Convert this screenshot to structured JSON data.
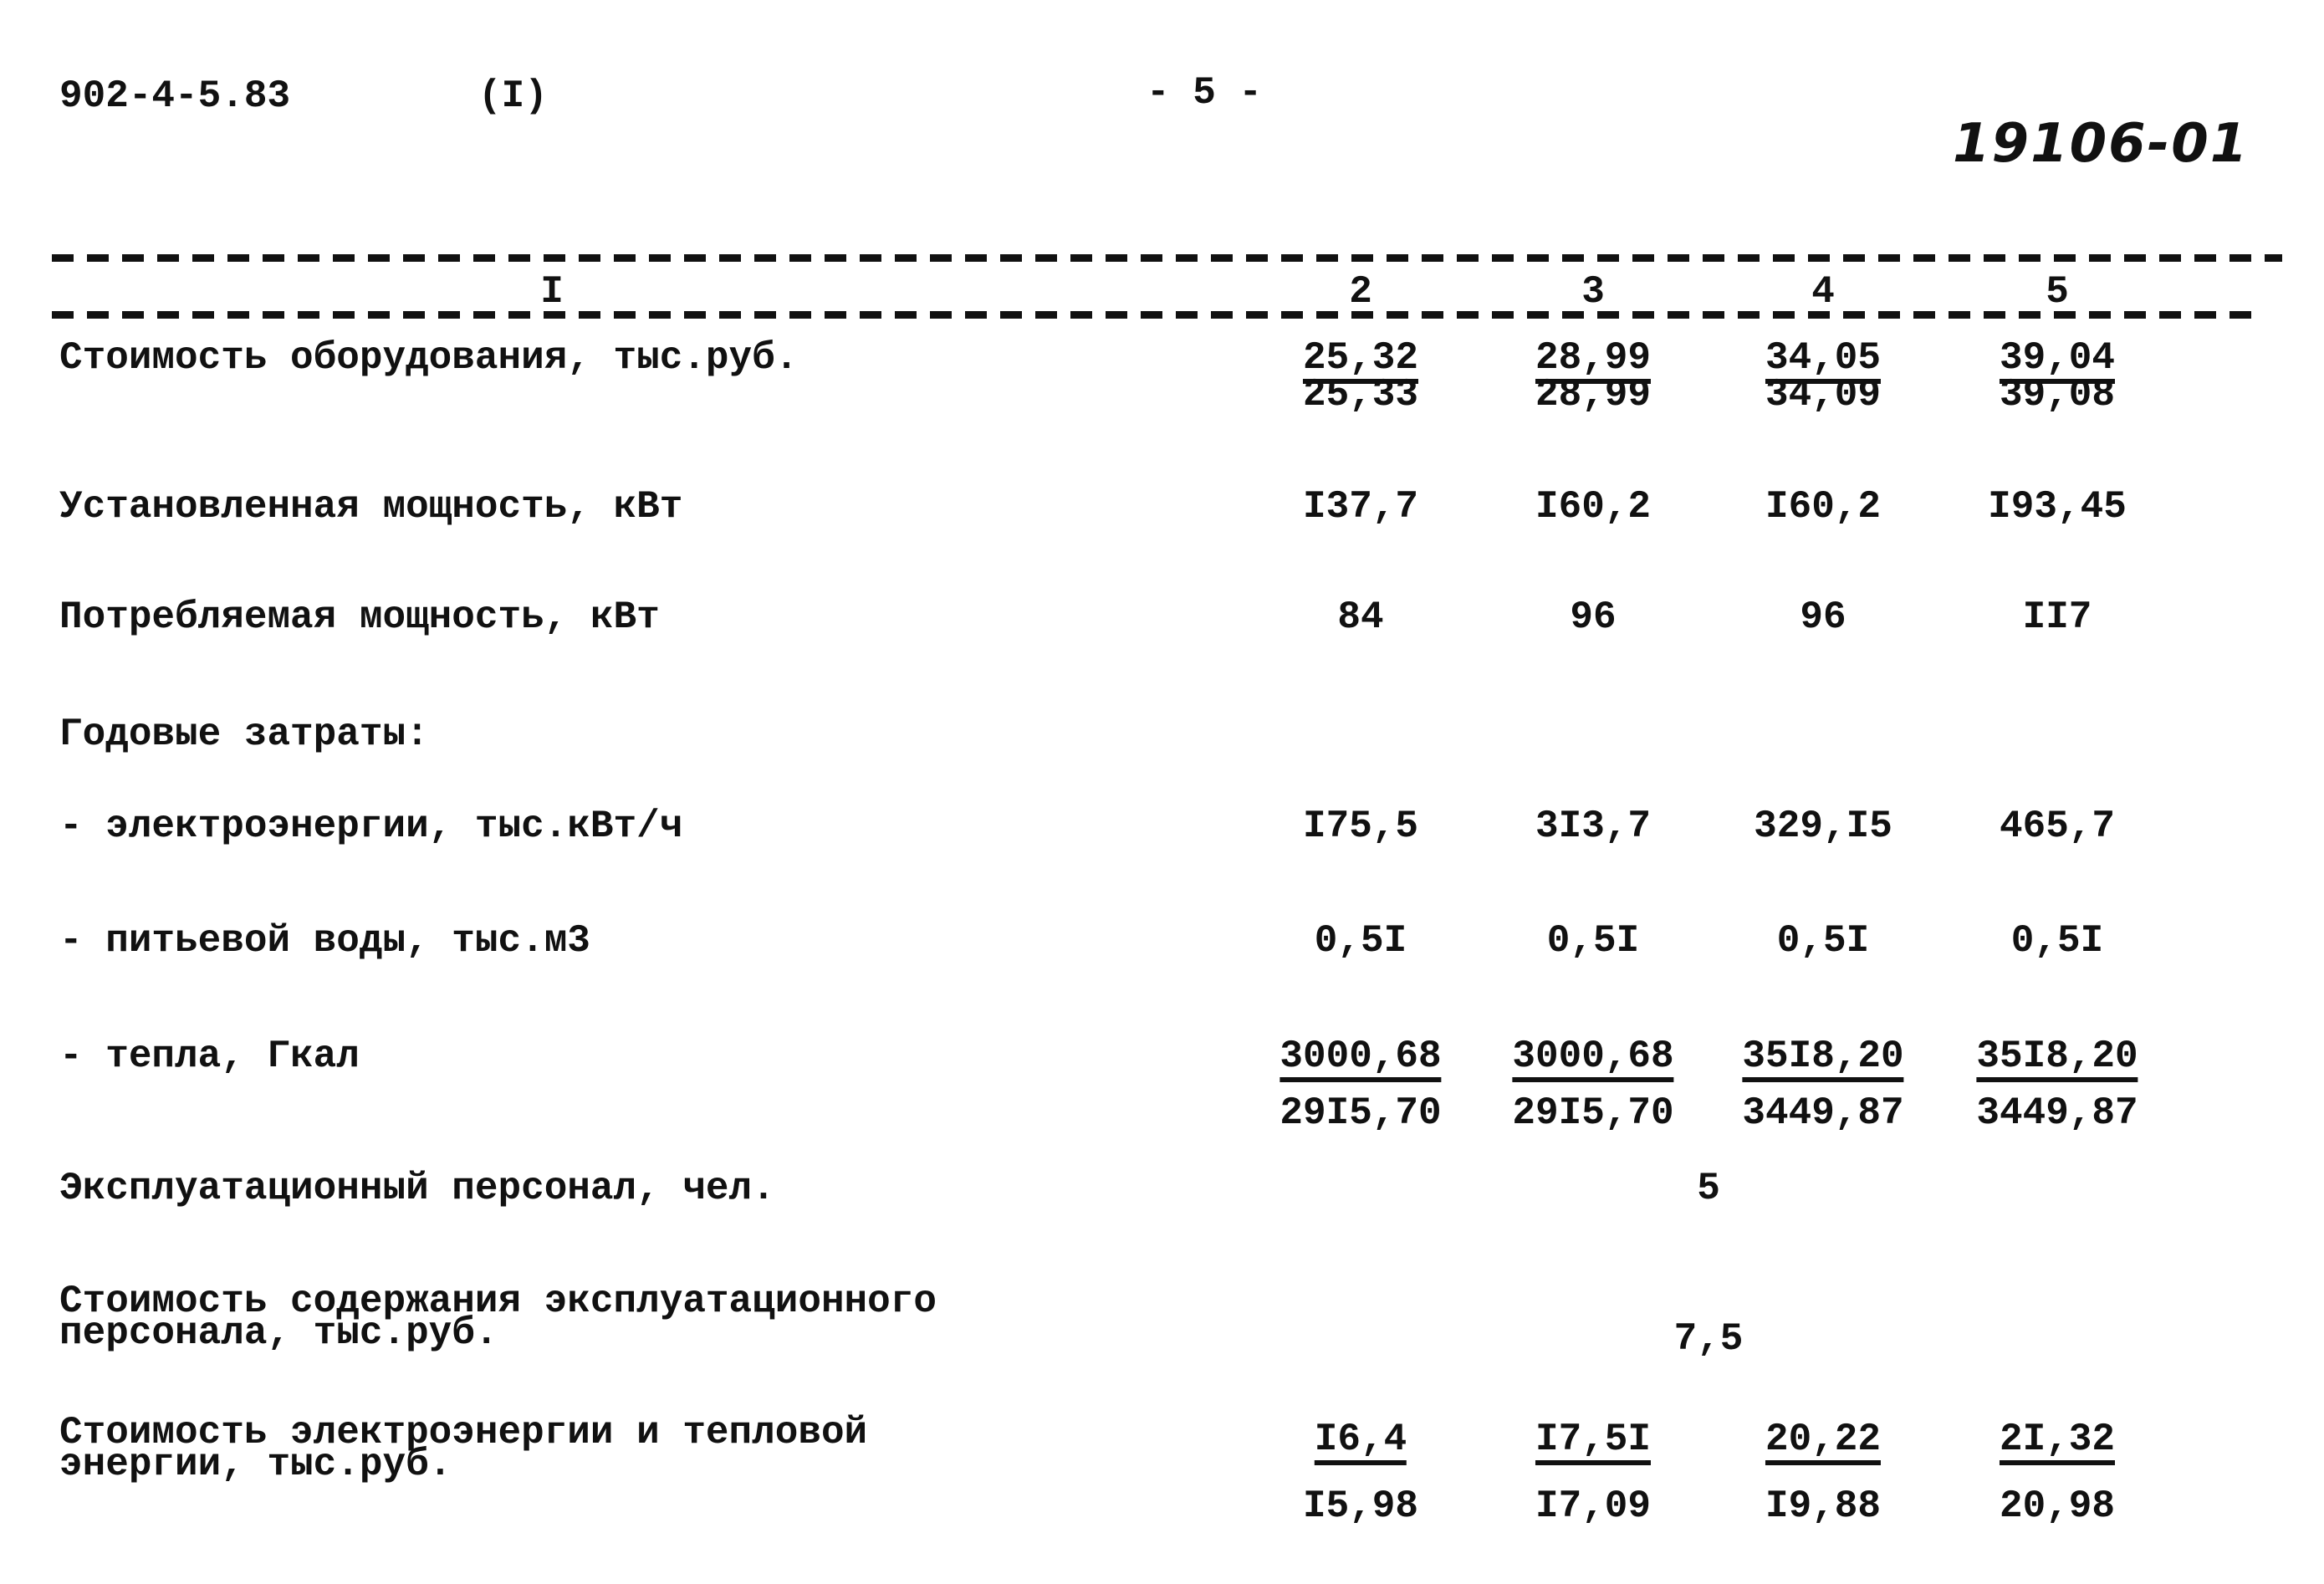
{
  "header": {
    "doc_code": "902-4-5.83",
    "part": "(I)",
    "page": "- 5 -",
    "stamp_number": "19106-01"
  },
  "columns": [
    "I",
    "2",
    "3",
    "4",
    "5"
  ],
  "rows": [
    {
      "label": "Стоимость оборудования, тыс.руб.",
      "type": "fraction",
      "top": [
        "25,32",
        "28,99",
        "34,05",
        "39,04"
      ],
      "bottom": [
        "25,33",
        "28,99",
        "34,09",
        "39,08"
      ]
    },
    {
      "label": "Установленная мощность, кВт",
      "type": "values",
      "values": [
        "I37,7",
        "I60,2",
        "I60,2",
        "I93,45"
      ]
    },
    {
      "label": "Потребляемая мощность, кВт",
      "type": "values",
      "values": [
        "84",
        "96",
        "96",
        "II7"
      ]
    },
    {
      "label": "Годовые затраты:",
      "type": "heading"
    },
    {
      "label": "- электроэнергии, тыс.кВт/ч",
      "type": "values",
      "values": [
        "I75,5",
        "3I3,7",
        "329,I5",
        "465,7"
      ]
    },
    {
      "label": "- питьевой воды, тыс.м3",
      "type": "values",
      "values": [
        "0,5I",
        "0,5I",
        "0,5I",
        "0,5I"
      ]
    },
    {
      "label": "- тепла, Гкал",
      "type": "fraction",
      "top": [
        "3000,68",
        "3000,68",
        "35I8,20",
        "35I8,20"
      ],
      "bottom": [
        "29I5,70",
        "29I5,70",
        "3449,87",
        "3449,87"
      ]
    },
    {
      "label": "Эксплуатационный персонал, чел.",
      "type": "single",
      "value": "5"
    },
    {
      "label": "Стоимость содержания эксплуатационного",
      "label2": "персонала, тыс.руб.",
      "type": "single",
      "value": "7,5"
    },
    {
      "label": "Стоимость электроэнергии и тепловой",
      "label2": "энергии, тыс.руб.",
      "type": "fraction",
      "top": [
        "I6,4",
        "I7,5I",
        "20,22",
        "2I,32"
      ],
      "bottom": [
        "I5,98",
        "I7,09",
        "I9,88",
        "20,98"
      ]
    }
  ]
}
